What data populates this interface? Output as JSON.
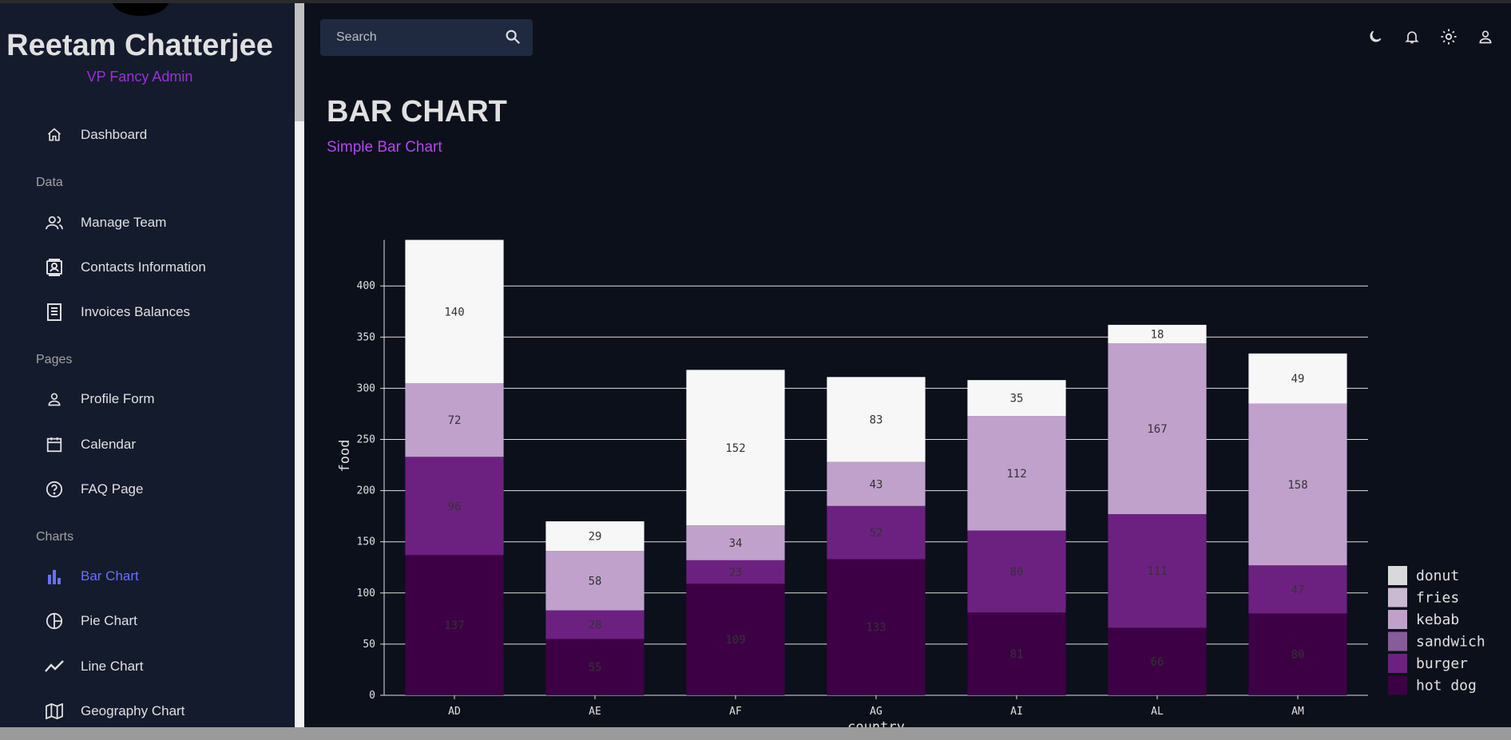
{
  "sidebar": {
    "user_name": "Reetam Chatterjee",
    "user_role": "VP Fancy Admin",
    "dashboard": "Dashboard",
    "section_data": "Data",
    "manage_team": "Manage Team",
    "contacts": "Contacts Information",
    "invoices": "Invoices Balances",
    "section_pages": "Pages",
    "profile_form": "Profile Form",
    "calendar": "Calendar",
    "faq": "FAQ Page",
    "section_charts": "Charts",
    "bar_chart": "Bar Chart",
    "pie_chart": "Pie Chart",
    "line_chart": "Line Chart",
    "geography_chart": "Geography Chart"
  },
  "topbar": {
    "search_placeholder": "Search",
    "icons": [
      "moon-icon",
      "bell-icon",
      "gear-icon",
      "person-icon"
    ]
  },
  "header": {
    "title": "BAR CHART",
    "subtitle": "Simple Bar Chart"
  },
  "colors": {
    "accent_purple": "#b245f0",
    "active_nav": "#6870fa",
    "sidebar_bg": "#141b2d",
    "main_bg": "#0c101b"
  },
  "chart_data": {
    "type": "bar",
    "stacked": true,
    "categories": [
      "AD",
      "AE",
      "AF",
      "AG",
      "AI",
      "AL",
      "AM"
    ],
    "series": [
      {
        "name": "hot dog",
        "color": "#3d0045",
        "values": [
          137,
          55,
          109,
          133,
          81,
          66,
          80
        ]
      },
      {
        "name": "burger",
        "color": "#6c2180",
        "values": [
          96,
          28,
          23,
          52,
          80,
          111,
          47
        ]
      },
      {
        "name": "sandwich",
        "color": "#865c99",
        "values": [
          0,
          0,
          0,
          0,
          0,
          0,
          0
        ]
      },
      {
        "name": "kebab",
        "color": "#c0a1cc",
        "values": [
          72,
          58,
          34,
          43,
          112,
          167,
          158
        ]
      },
      {
        "name": "fries",
        "color": "#cbb9d1",
        "values": [
          0,
          0,
          0,
          0,
          0,
          0,
          0
        ]
      },
      {
        "name": "donut",
        "color": "#f7f7f7",
        "values": [
          140,
          29,
          152,
          83,
          35,
          18,
          49
        ]
      }
    ],
    "xlabel": "country",
    "ylabel": "food",
    "yticks": [
      0,
      50,
      100,
      150,
      200,
      250,
      300,
      350,
      400
    ],
    "ylim": [
      0,
      445
    ],
    "legend_position": "bottom-right",
    "legend_order": [
      "donut",
      "fries",
      "kebab",
      "sandwich",
      "burger",
      "hot dog"
    ],
    "grid": true
  }
}
